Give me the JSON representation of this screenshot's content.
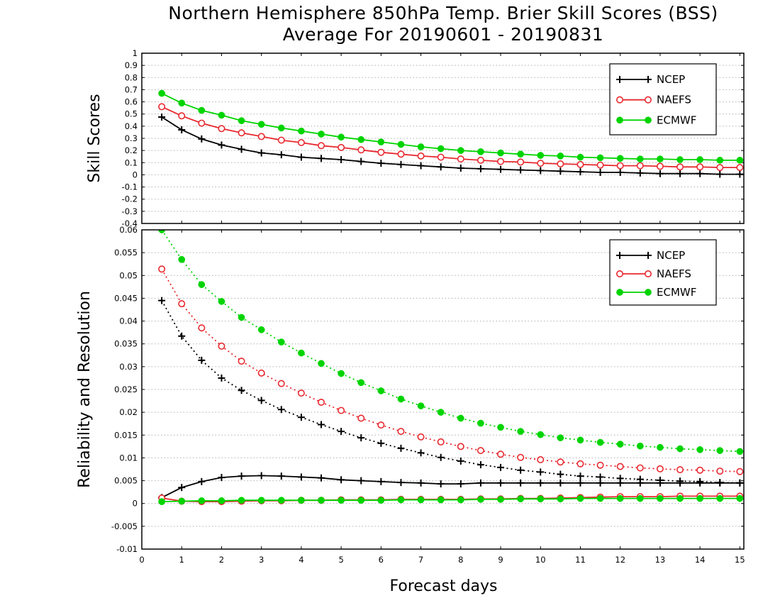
{
  "page": {
    "title_line1": "Northern Hemisphere 850hPa Temp. Brier Skill Scores (BSS)",
    "title_line2": "Average For 20190601 - 20190831"
  },
  "colors": {
    "NCEP": "#000000",
    "NAEFS": "#e8292f",
    "ECMWF": "#00d400"
  },
  "chart_data": [
    {
      "type": "line",
      "title": "",
      "ylabel": "Skill Scores",
      "xlabel": "",
      "xlim": [
        0,
        15.1
      ],
      "ylim": [
        -0.4,
        1.0
      ],
      "yticks": [
        -0.4,
        -0.3,
        -0.2,
        -0.1,
        0,
        0.1,
        0.2,
        0.3,
        0.4,
        0.5,
        0.6,
        0.7,
        0.8,
        0.9,
        1
      ],
      "ytick_labels": [
        "-0.4",
        "-0.3",
        "-0.2",
        "-0.1",
        "0",
        "0.1",
        "0.2",
        "0.3",
        "0.4",
        "0.5",
        "0.6",
        "0.7",
        "0.8",
        "0.9",
        "1"
      ],
      "grid": "horizontal dotted",
      "legend_position": "top-right",
      "x": [
        0.5,
        1,
        1.5,
        2,
        2.5,
        3,
        3.5,
        4,
        4.5,
        5,
        5.5,
        6,
        6.5,
        7,
        7.5,
        8,
        8.5,
        9,
        9.5,
        10,
        10.5,
        11,
        11.5,
        12,
        12.5,
        13,
        13.5,
        14,
        14.5,
        15
      ],
      "series": [
        {
          "name": "NCEP",
          "marker": "plus",
          "line": "solid",
          "values": [
            0.475,
            0.37,
            0.295,
            0.245,
            0.21,
            0.18,
            0.165,
            0.145,
            0.135,
            0.125,
            0.11,
            0.095,
            0.085,
            0.075,
            0.065,
            0.055,
            0.05,
            0.045,
            0.04,
            0.035,
            0.03,
            0.025,
            0.02,
            0.02,
            0.015,
            0.01,
            0.01,
            0.01,
            0.005,
            0.005
          ]
        },
        {
          "name": "NAEFS",
          "marker": "open-circle",
          "line": "solid",
          "values": [
            0.56,
            0.485,
            0.425,
            0.38,
            0.345,
            0.315,
            0.285,
            0.265,
            0.24,
            0.225,
            0.205,
            0.185,
            0.17,
            0.155,
            0.145,
            0.13,
            0.12,
            0.11,
            0.105,
            0.095,
            0.09,
            0.085,
            0.08,
            0.075,
            0.075,
            0.07,
            0.065,
            0.065,
            0.06,
            0.06
          ]
        },
        {
          "name": "ECMWF",
          "marker": "filled-circle",
          "line": "solid",
          "values": [
            0.67,
            0.59,
            0.53,
            0.49,
            0.445,
            0.415,
            0.385,
            0.36,
            0.335,
            0.31,
            0.29,
            0.27,
            0.25,
            0.23,
            0.215,
            0.2,
            0.19,
            0.18,
            0.17,
            0.16,
            0.155,
            0.145,
            0.14,
            0.135,
            0.13,
            0.13,
            0.125,
            0.125,
            0.12,
            0.12
          ]
        }
      ]
    },
    {
      "type": "line",
      "title": "",
      "ylabel": "Reliability and Resolution",
      "xlabel": "Forecast days",
      "xlim": [
        0,
        15.1
      ],
      "ylim": [
        -0.01,
        0.06
      ],
      "xticks": [
        0,
        1,
        2,
        3,
        4,
        5,
        6,
        7,
        8,
        9,
        10,
        11,
        12,
        13,
        14,
        15
      ],
      "xtick_labels": [
        "0",
        "1",
        "2",
        "3",
        "4",
        "5",
        "6",
        "7",
        "8",
        "9",
        "10",
        "11",
        "12",
        "13",
        "14",
        "15"
      ],
      "yticks": [
        -0.01,
        -0.005,
        0,
        0.005,
        0.01,
        0.015,
        0.02,
        0.025,
        0.03,
        0.035,
        0.04,
        0.045,
        0.05,
        0.055,
        0.06
      ],
      "ytick_labels": [
        "-0.01",
        "-0.005",
        "0",
        "0.005",
        "0.01",
        "0.015",
        "0.02",
        "0.025",
        "0.03",
        "0.035",
        "0.04",
        "0.045",
        "0.05",
        "0.055",
        "0.06"
      ],
      "grid": "horizontal dotted",
      "legend_position": "top-right",
      "x": [
        0.5,
        1,
        1.5,
        2,
        2.5,
        3,
        3.5,
        4,
        4.5,
        5,
        5.5,
        6,
        6.5,
        7,
        7.5,
        8,
        8.5,
        9,
        9.5,
        10,
        10.5,
        11,
        11.5,
        12,
        12.5,
        13,
        13.5,
        14,
        14.5,
        15
      ],
      "series": [
        {
          "name": "NCEP",
          "component": "resolution",
          "marker": "plus",
          "line": "dotted",
          "values": [
            0.0445,
            0.0367,
            0.0314,
            0.0275,
            0.0248,
            0.0226,
            0.0206,
            0.0189,
            0.0173,
            0.0158,
            0.0144,
            0.0132,
            0.0121,
            0.0111,
            0.0101,
            0.0093,
            0.0085,
            0.0079,
            0.0073,
            0.0069,
            0.0064,
            0.006,
            0.0058,
            0.0055,
            0.0053,
            0.0051,
            0.0049,
            0.0048,
            0.0046,
            0.0045
          ]
        },
        {
          "name": "NAEFS",
          "component": "resolution",
          "marker": "open-circle",
          "line": "dotted",
          "values": [
            0.0514,
            0.0438,
            0.0385,
            0.0345,
            0.0312,
            0.0286,
            0.0263,
            0.0242,
            0.0222,
            0.0204,
            0.0187,
            0.0172,
            0.0158,
            0.0146,
            0.0135,
            0.0125,
            0.0116,
            0.0108,
            0.0101,
            0.0096,
            0.0091,
            0.0087,
            0.0084,
            0.0081,
            0.0078,
            0.0076,
            0.0074,
            0.0073,
            0.0071,
            0.007
          ]
        },
        {
          "name": "ECMWF",
          "component": "resolution",
          "marker": "filled-circle",
          "line": "dotted",
          "values": [
            0.06,
            0.0535,
            0.048,
            0.0443,
            0.0408,
            0.0381,
            0.0354,
            0.033,
            0.0307,
            0.0285,
            0.0265,
            0.0247,
            0.0229,
            0.0214,
            0.02,
            0.0187,
            0.0176,
            0.0167,
            0.0158,
            0.0151,
            0.0144,
            0.0139,
            0.0134,
            0.013,
            0.0126,
            0.0123,
            0.012,
            0.0118,
            0.0116,
            0.0114
          ]
        },
        {
          "name": "NCEP",
          "component": "reliability",
          "marker": "plus",
          "line": "solid",
          "values": [
            0.0013,
            0.0035,
            0.0048,
            0.0057,
            0.006,
            0.0061,
            0.006,
            0.0058,
            0.0056,
            0.0052,
            0.005,
            0.0048,
            0.0046,
            0.0045,
            0.0043,
            0.0043,
            0.0045,
            0.0045,
            0.0045,
            0.0045,
            0.0045,
            0.0045,
            0.0045,
            0.0045,
            0.0045,
            0.0045,
            0.0045,
            0.0045,
            0.0045,
            0.0045
          ]
        },
        {
          "name": "NAEFS",
          "component": "reliability",
          "marker": "open-circle",
          "line": "solid",
          "values": [
            0.0012,
            0.0005,
            0.0004,
            0.0004,
            0.0005,
            0.0006,
            0.0006,
            0.0007,
            0.0007,
            0.0008,
            0.0008,
            0.0008,
            0.0009,
            0.0009,
            0.0009,
            0.0009,
            0.001,
            0.001,
            0.0011,
            0.0011,
            0.0012,
            0.0013,
            0.0014,
            0.0015,
            0.0015,
            0.0015,
            0.0016,
            0.0016,
            0.0016,
            0.0016
          ]
        },
        {
          "name": "ECMWF",
          "component": "reliability",
          "marker": "filled-circle",
          "line": "solid",
          "values": [
            0.0004,
            0.0005,
            0.0006,
            0.0006,
            0.0007,
            0.0007,
            0.0007,
            0.0007,
            0.0007,
            0.0007,
            0.0007,
            0.0007,
            0.0008,
            0.0008,
            0.0008,
            0.0008,
            0.0009,
            0.0009,
            0.001,
            0.001,
            0.001,
            0.0011,
            0.0011,
            0.0011,
            0.0011,
            0.0011,
            0.0011,
            0.0011,
            0.0011,
            0.0011
          ]
        }
      ]
    }
  ]
}
